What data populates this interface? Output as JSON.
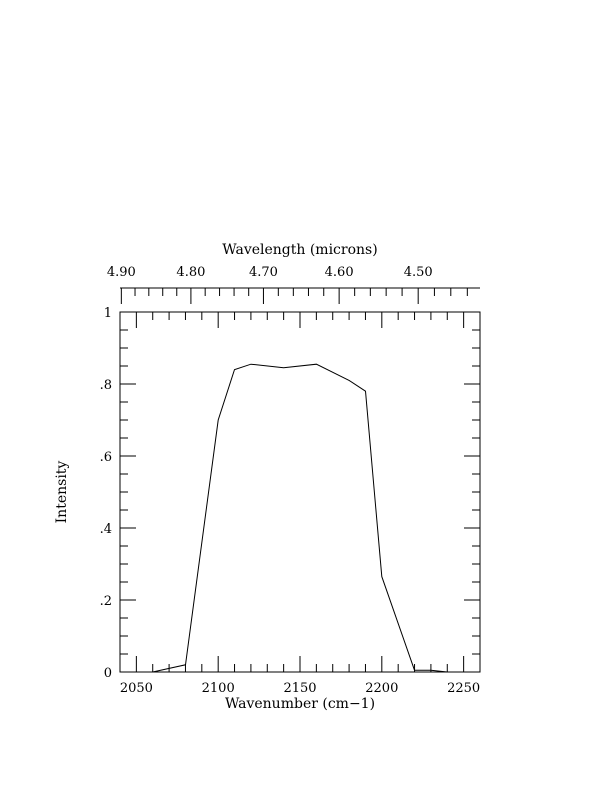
{
  "chart_data": {
    "type": "line",
    "title": "",
    "xlabel": "Wavenumber (cm−1)",
    "ylabel": "Intensity",
    "top_axis_label": "Wavelength (microns)",
    "xlim": [
      2040,
      2260
    ],
    "ylim": [
      0,
      1
    ],
    "x_ticks": [
      2050,
      2100,
      2150,
      2200,
      2250
    ],
    "x_tick_labels": [
      "2050",
      "2100",
      "2150",
      "2200",
      "2250"
    ],
    "y_ticks": [
      0,
      0.2,
      0.4,
      0.6,
      0.8,
      1
    ],
    "y_tick_labels": [
      "0",
      ".2",
      ".4",
      ".6",
      ".8",
      "1"
    ],
    "top_ticks_microns": [
      4.9,
      4.8,
      4.7,
      4.6,
      4.5
    ],
    "top_tick_labels": [
      "4.90",
      "4.80",
      "4.70",
      "4.60",
      "4.50"
    ],
    "grid": false,
    "legend": "none",
    "series": [
      {
        "x": [
          2040,
          2060,
          2080,
          2100,
          2110,
          2120,
          2140,
          2160,
          2180,
          2190,
          2200,
          2220,
          2230,
          2240,
          2260
        ],
        "y": [
          0.0,
          0.0,
          0.02,
          0.7,
          0.84,
          0.855,
          0.845,
          0.855,
          0.81,
          0.78,
          0.265,
          0.005,
          0.005,
          0.0,
          0.0
        ]
      }
    ]
  }
}
